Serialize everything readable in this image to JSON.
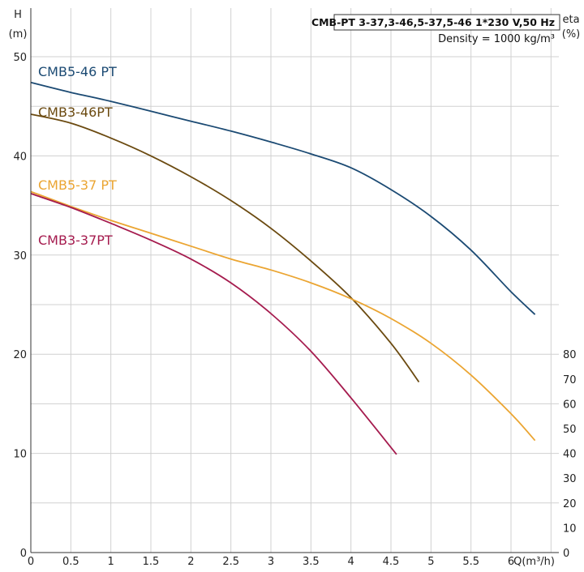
{
  "chart_data": {
    "type": "line",
    "title": "CMB-PT 3-37,3-46,5-37,5-46  1*230 V,50 Hz",
    "subtitle": "Density = 1000 kg/m³",
    "ylabel_left": "H",
    "ylabel_left_unit": "(m)",
    "ylabel_right": "eta",
    "ylabel_right_unit": "(%)",
    "xlabel": "Q(m³/h)",
    "xlim": [
      0,
      6.6
    ],
    "ylim": [
      0,
      50
    ],
    "ylim_right": [
      0,
      80
    ],
    "x_ticks": [
      "0",
      "0.5",
      "1",
      "1.5",
      "2",
      "2.5",
      "3",
      "3.5",
      "4",
      "4.5",
      "5",
      "5.5",
      "6"
    ],
    "x_tick_values": [
      0,
      0.5,
      1,
      1.5,
      2,
      2.5,
      3,
      3.5,
      4,
      4.5,
      5,
      5.5,
      6
    ],
    "y_ticks": [
      "0",
      "10",
      "20",
      "30",
      "40",
      "50"
    ],
    "y_tick_values": [
      0,
      10,
      20,
      30,
      40,
      50
    ],
    "y_right_ticks": [
      "0",
      "10",
      "20",
      "30",
      "40",
      "50",
      "60",
      "70",
      "80"
    ],
    "y_right_tick_values": [
      0,
      10,
      20,
      30,
      40,
      50,
      60,
      70,
      80
    ],
    "grid": true,
    "series": [
      {
        "name": "CMB5-46 PT",
        "color": "#1b4a73",
        "x": [
          0,
          0.5,
          1,
          1.5,
          2,
          2.5,
          3,
          3.5,
          4,
          4.5,
          5,
          5.5,
          6,
          6.3
        ],
        "y": [
          47.4,
          46.4,
          45.5,
          44.5,
          43.5,
          42.5,
          41.4,
          40.2,
          38.8,
          36.6,
          33.9,
          30.5,
          26.3,
          24.0
        ]
      },
      {
        "name": "CMB3-46PT",
        "color": "#6b4a10",
        "x": [
          0,
          0.5,
          1,
          1.5,
          2,
          2.5,
          3,
          3.5,
          4,
          4.5,
          4.85
        ],
        "y": [
          44.2,
          43.3,
          41.8,
          40.0,
          37.9,
          35.5,
          32.7,
          29.4,
          25.7,
          21.1,
          17.2
        ]
      },
      {
        "name": "CMB5-37 PT",
        "color": "#eba532",
        "x": [
          0,
          0.5,
          1,
          1.5,
          2,
          2.5,
          3,
          3.5,
          4,
          4.5,
          5,
          5.5,
          6,
          6.3
        ],
        "y": [
          36.4,
          34.9,
          33.5,
          32.2,
          30.9,
          29.6,
          28.5,
          27.2,
          25.6,
          23.6,
          21.1,
          17.9,
          14.0,
          11.3
        ]
      },
      {
        "name": "CMB3-37PT",
        "color": "#a51b4e",
        "x": [
          0,
          0.5,
          1,
          1.5,
          2,
          2.5,
          3,
          3.5,
          4,
          4.57
        ],
        "y": [
          36.2,
          34.8,
          33.2,
          31.5,
          29.6,
          27.2,
          24.1,
          20.3,
          15.6,
          9.9
        ]
      }
    ]
  }
}
